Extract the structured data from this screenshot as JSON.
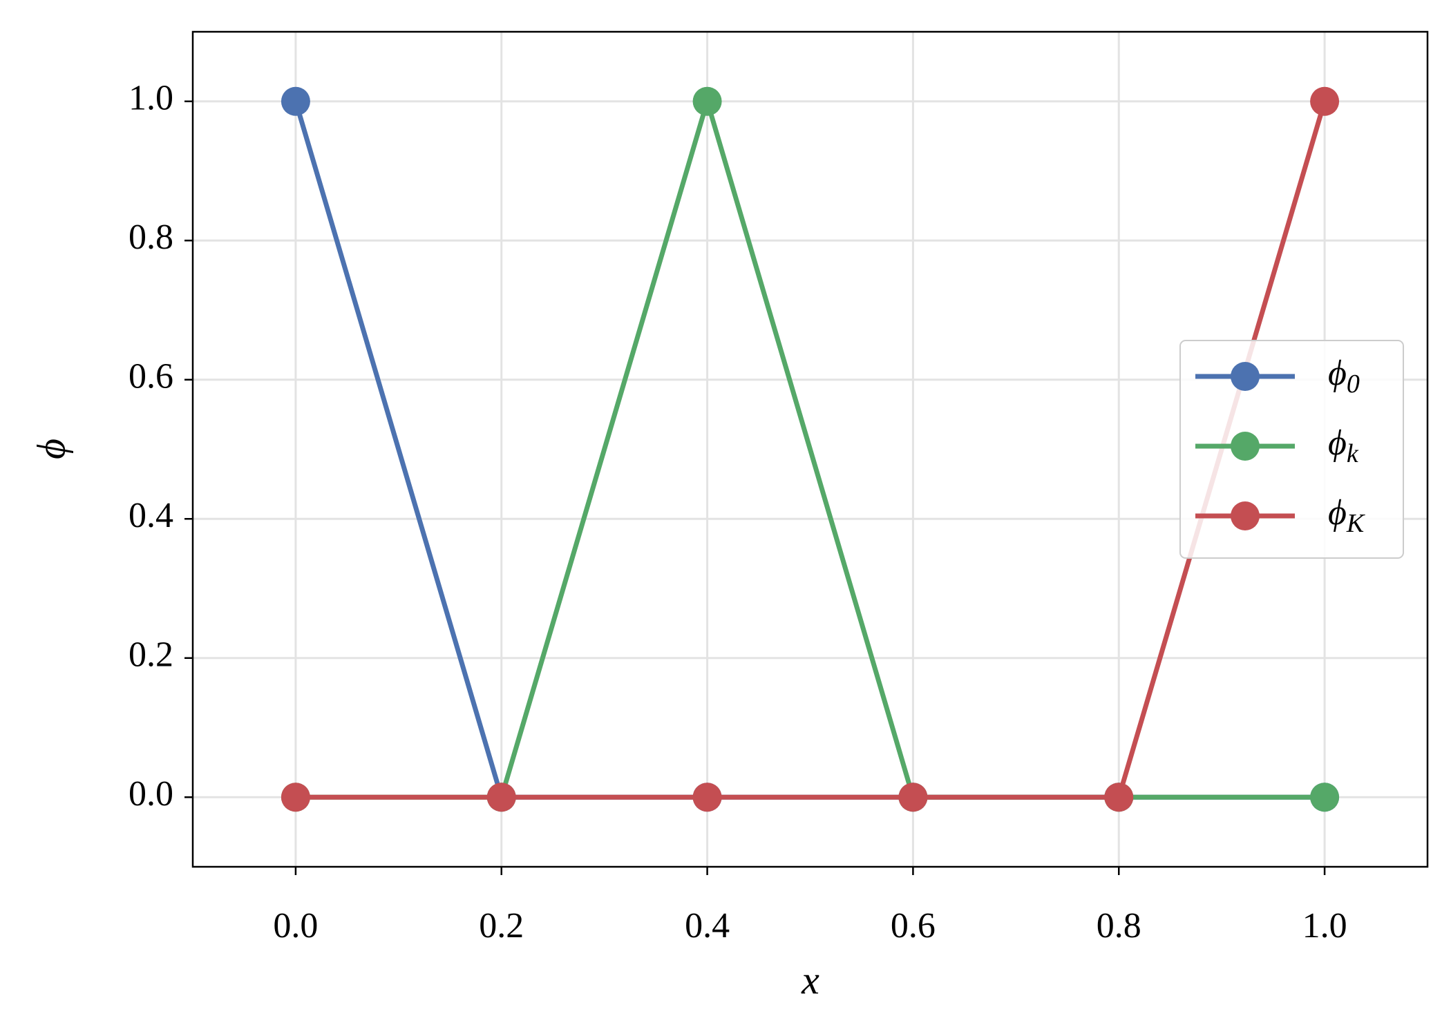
{
  "chart_data": {
    "type": "line",
    "x": [
      0,
      0.2,
      0.4,
      0.6,
      0.8,
      1
    ],
    "series": [
      {
        "name": "ϕ0",
        "color": "#4c72b0",
        "values": [
          1,
          0,
          0,
          0,
          0,
          0
        ]
      },
      {
        "name": "ϕk",
        "color": "#55a868",
        "values": [
          0,
          0,
          1,
          0,
          0,
          0
        ]
      },
      {
        "name": "ϕK",
        "color": "#c44e52",
        "values": [
          0,
          0,
          0,
          0,
          0,
          1
        ]
      }
    ],
    "xlabel": "x",
    "ylabel": "ϕ",
    "xlim": [
      -0.1,
      1.1
    ],
    "ylim": [
      -0.1,
      1.1
    ],
    "xticks": [
      {
        "value": 0,
        "label": "0.0"
      },
      0.2,
      0.4,
      0.6,
      0.8,
      {
        "value": 1,
        "label": "1.0"
      }
    ],
    "yticks": [
      {
        "value": 0,
        "label": "0.0"
      },
      0.2,
      0.4,
      0.6,
      0.8,
      {
        "value": 1,
        "label": "1.0"
      }
    ],
    "grid": true,
    "legend": "center right"
  }
}
